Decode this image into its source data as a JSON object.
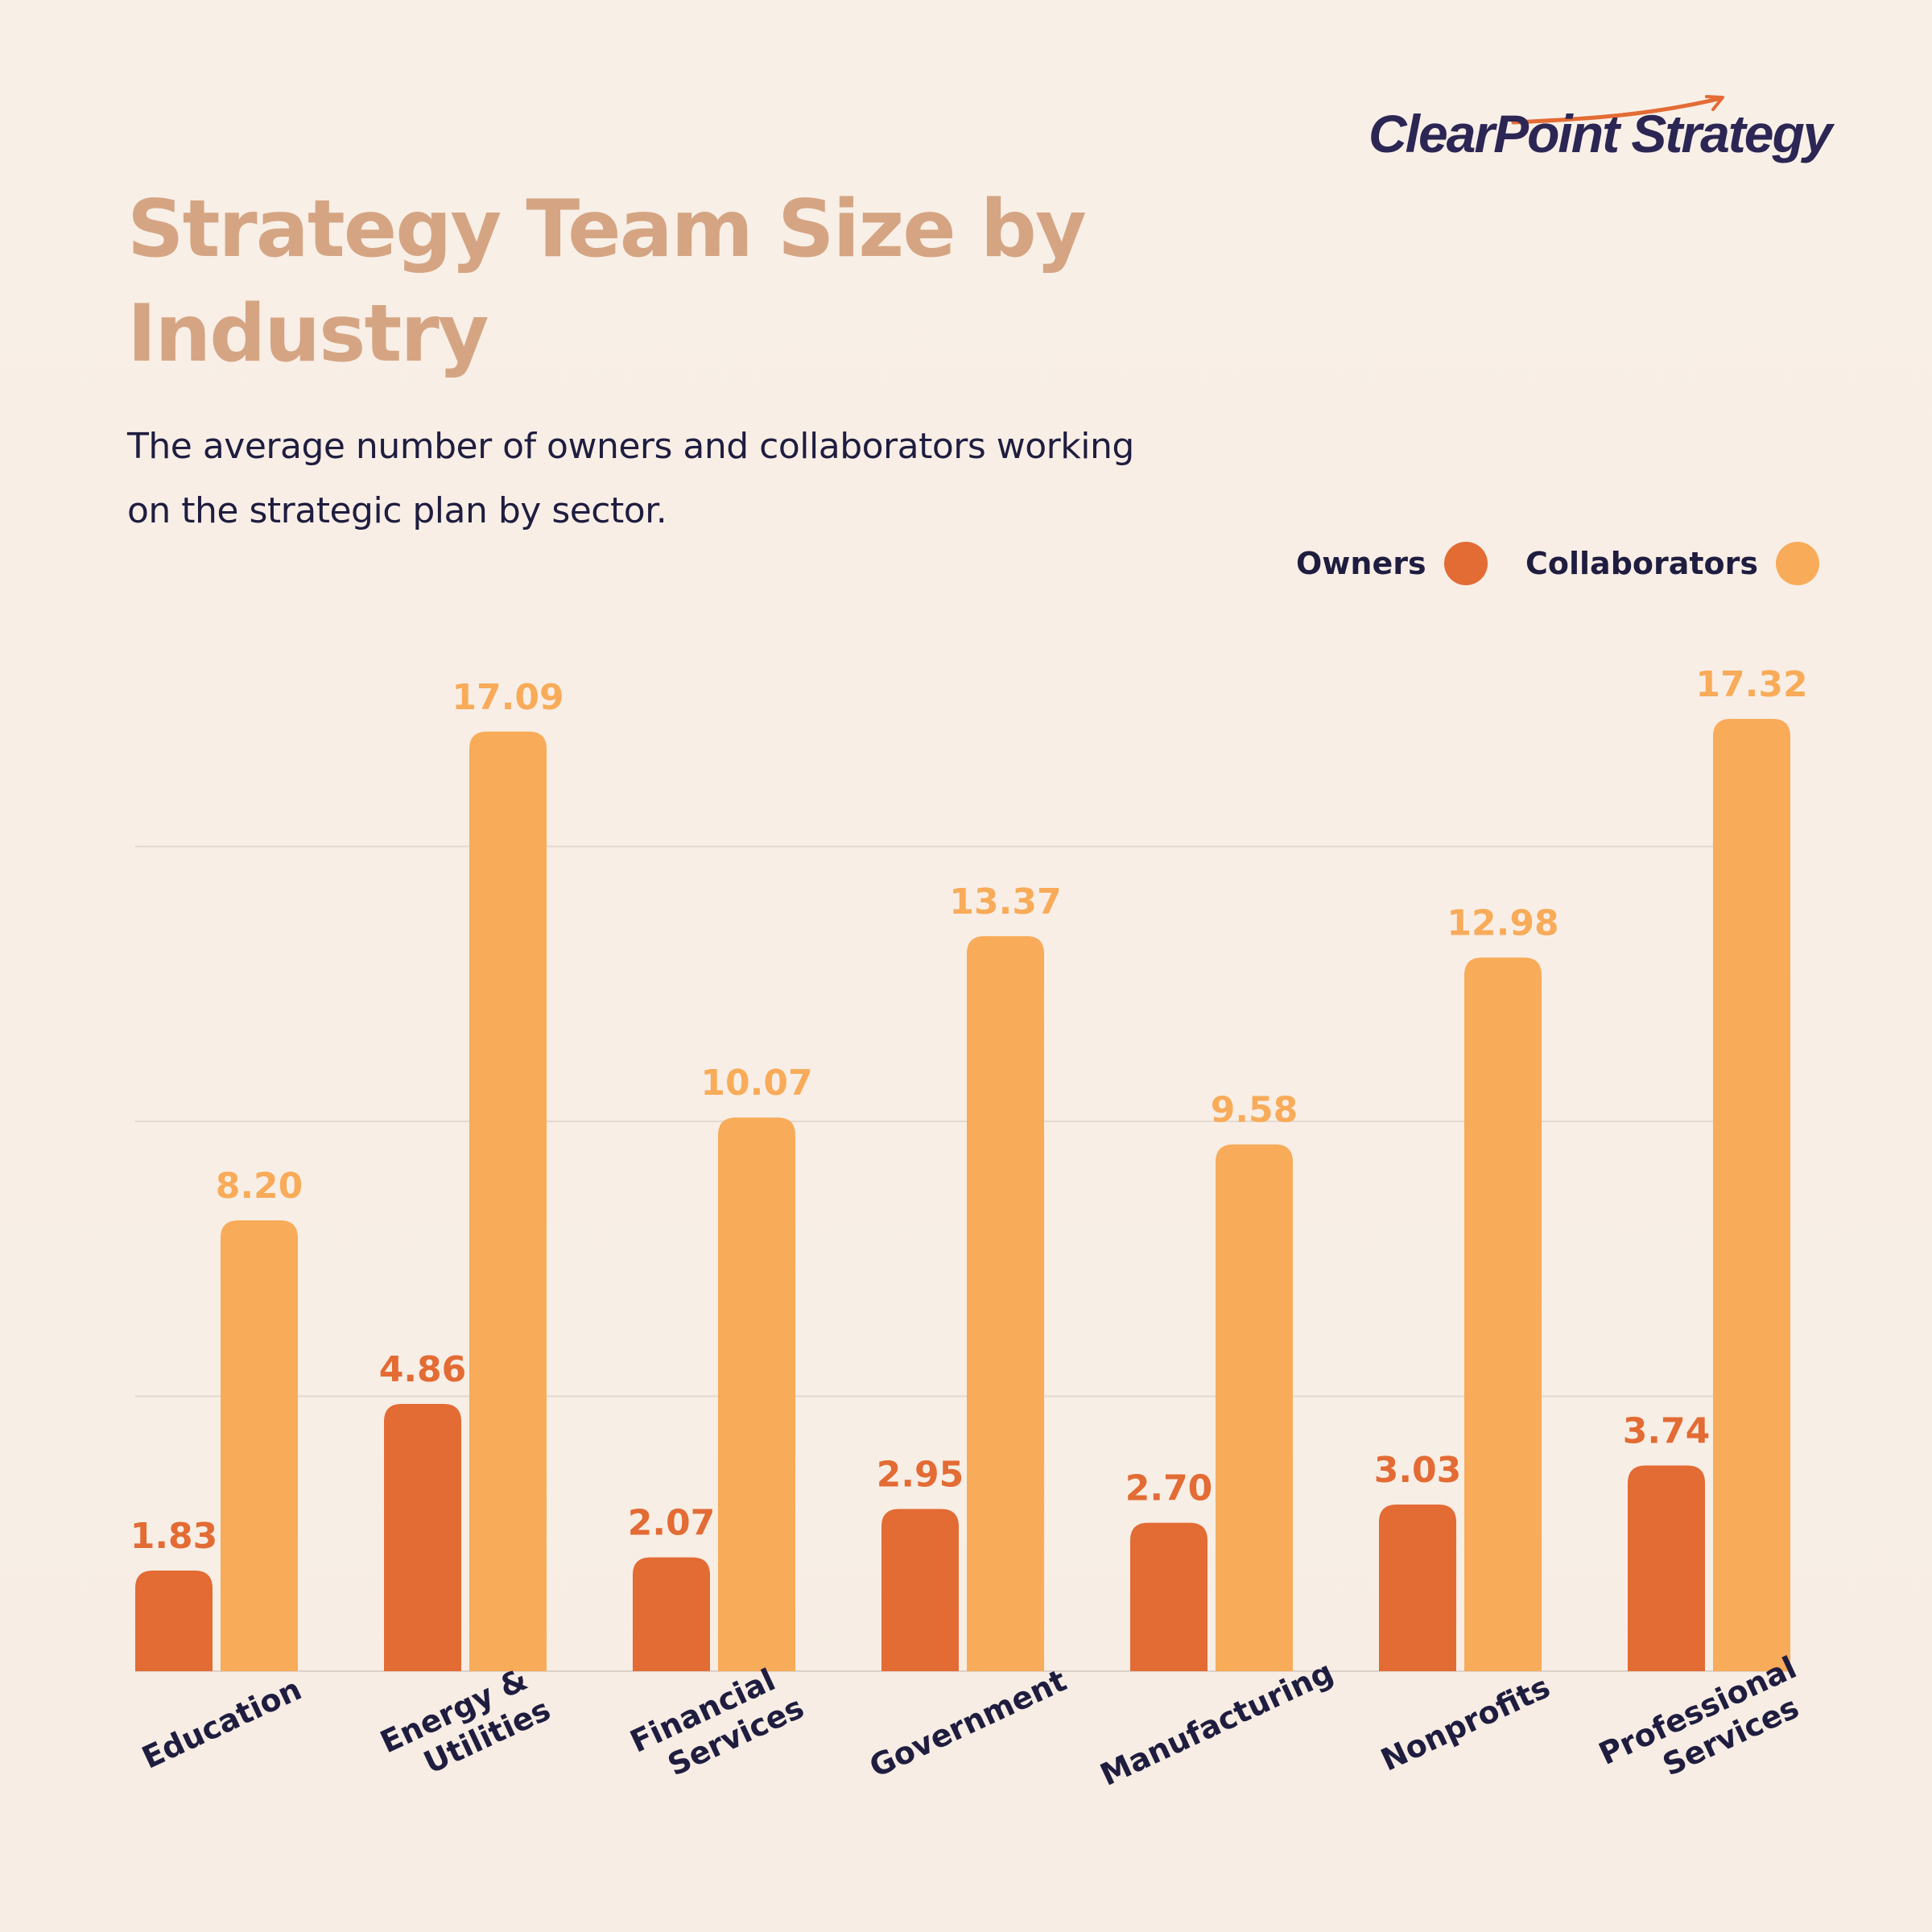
{
  "brand": {
    "name": "ClearPoint Strategy"
  },
  "header": {
    "title": "Strategy Team Size by Industry",
    "subtitle": "The average number of owners and collaborators working on the strategic plan by sector."
  },
  "colors": {
    "owners": "#e36b34",
    "collaborators": "#f8ab59",
    "brand_text": "#2c2654",
    "title": "#d5a583",
    "grid": "#e3d9d1"
  },
  "legend": {
    "owners_label": "Owners",
    "collaborators_label": "Collaborators"
  },
  "chart_data": {
    "type": "bar",
    "title": "Strategy Team Size by Industry",
    "subtitle": "The average number of owners and collaborators working on the strategic plan by sector.",
    "categories": [
      [
        "Education"
      ],
      [
        "Energy &",
        "Utilities"
      ],
      [
        "Financial",
        "Services"
      ],
      [
        "Government"
      ],
      [
        "Manufacturing"
      ],
      [
        "Nonprofits"
      ],
      [
        "Professional",
        "Services"
      ]
    ],
    "series": [
      {
        "name": "Owners",
        "values": [
          1.83,
          4.86,
          2.07,
          2.95,
          2.7,
          3.03,
          3.74
        ],
        "labels": [
          "1.83",
          "4.86",
          "2.07",
          "2.95",
          "2.70",
          "3.03",
          "3.74"
        ],
        "color": "#e36b34"
      },
      {
        "name": "Collaborators",
        "values": [
          8.2,
          17.09,
          10.07,
          13.37,
          9.58,
          12.98,
          17.32
        ],
        "labels": [
          "8.20",
          "17.09",
          "10.07",
          "13.37",
          "9.58",
          "12.98",
          "17.32"
        ],
        "color": "#f8ab59"
      }
    ],
    "ylim": [
      0,
      20
    ],
    "grid_values": [
      5,
      10,
      15
    ],
    "grid": true,
    "legend_position": "top-right"
  }
}
